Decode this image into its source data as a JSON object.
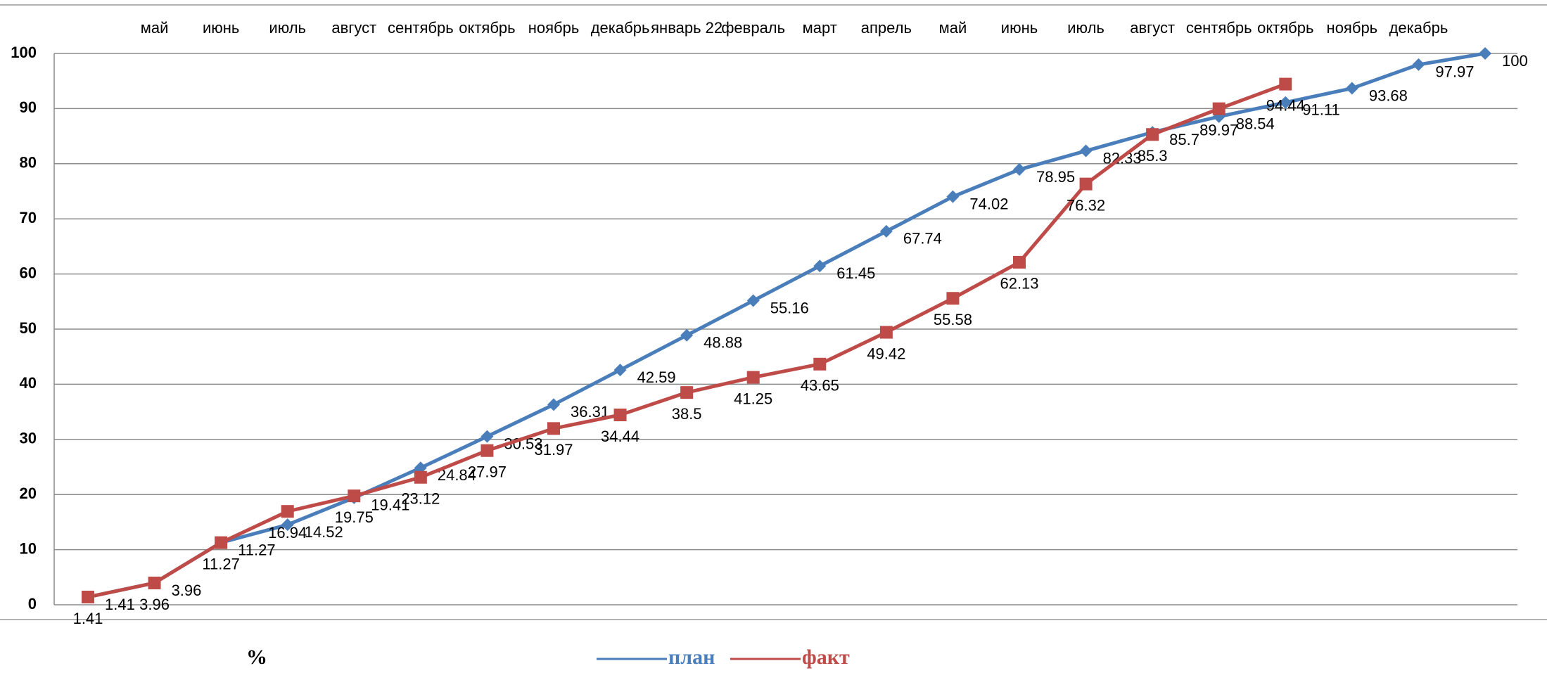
{
  "chart_data": {
    "type": "line",
    "y_label": "%",
    "categories": [
      null,
      "май",
      "июнь",
      "июль",
      "август",
      "сентябрь",
      "октябрь",
      "ноябрь",
      "декабрь",
      "январь 22",
      "февраль",
      "март",
      "апрель",
      "май",
      "июнь",
      "июль",
      "август",
      "сентябрь",
      "октябрь",
      "ноябрь",
      "декабрь",
      null
    ],
    "series": [
      {
        "name": "план",
        "color": "#4a7ebb",
        "marker": "diamond",
        "values": [
          1.41,
          3.96,
          11.27,
          14.52,
          19.41,
          24.84,
          30.53,
          36.31,
          42.59,
          48.88,
          55.16,
          61.45,
          67.74,
          74.02,
          78.95,
          82.33,
          85.7,
          88.54,
          91.11,
          93.68,
          97.97,
          100
        ]
      },
      {
        "name": "факт",
        "color": "#be4b48",
        "marker": "square",
        "values": [
          1.41,
          3.96,
          11.27,
          16.94,
          19.75,
          23.12,
          27.97,
          31.97,
          34.44,
          38.5,
          41.25,
          43.65,
          49.42,
          55.58,
          62.13,
          76.32,
          85.3,
          89.97,
          94.44,
          null,
          null,
          null
        ]
      }
    ],
    "ylim": [
      0,
      100
    ],
    "yticks": [
      0,
      10,
      20,
      30,
      40,
      50,
      60,
      70,
      80,
      90,
      100
    ],
    "grid": true
  }
}
